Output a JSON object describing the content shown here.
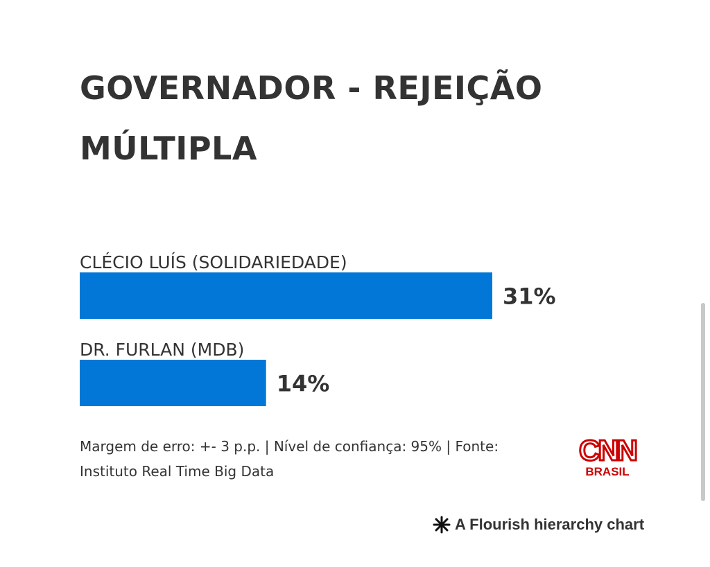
{
  "chart_data": {
    "type": "bar",
    "orientation": "horizontal",
    "title": "GOVERNADOR - REJEIÇÃO MÚLTIPLA",
    "categories": [
      "CLÉCIO LUÍS (SOLIDARIEDADE)",
      "DR. FURLAN (MDB)"
    ],
    "values": [
      31,
      14
    ],
    "value_labels": [
      "31%",
      "14%"
    ],
    "unit": "%",
    "bar_color": "#0277d7",
    "xlim": [
      0,
      31
    ]
  },
  "footer": {
    "note": "Margem de erro: +- 3 p.p. | Nível de confiança: 95% | Fonte: Instituto Real Time Big Data"
  },
  "logo": {
    "text": "CNN",
    "subtext": "BRASIL",
    "color": "#cc0000"
  },
  "credit": {
    "icon": "flourish-asterisk-icon",
    "text": "A Flourish hierarchy chart"
  }
}
